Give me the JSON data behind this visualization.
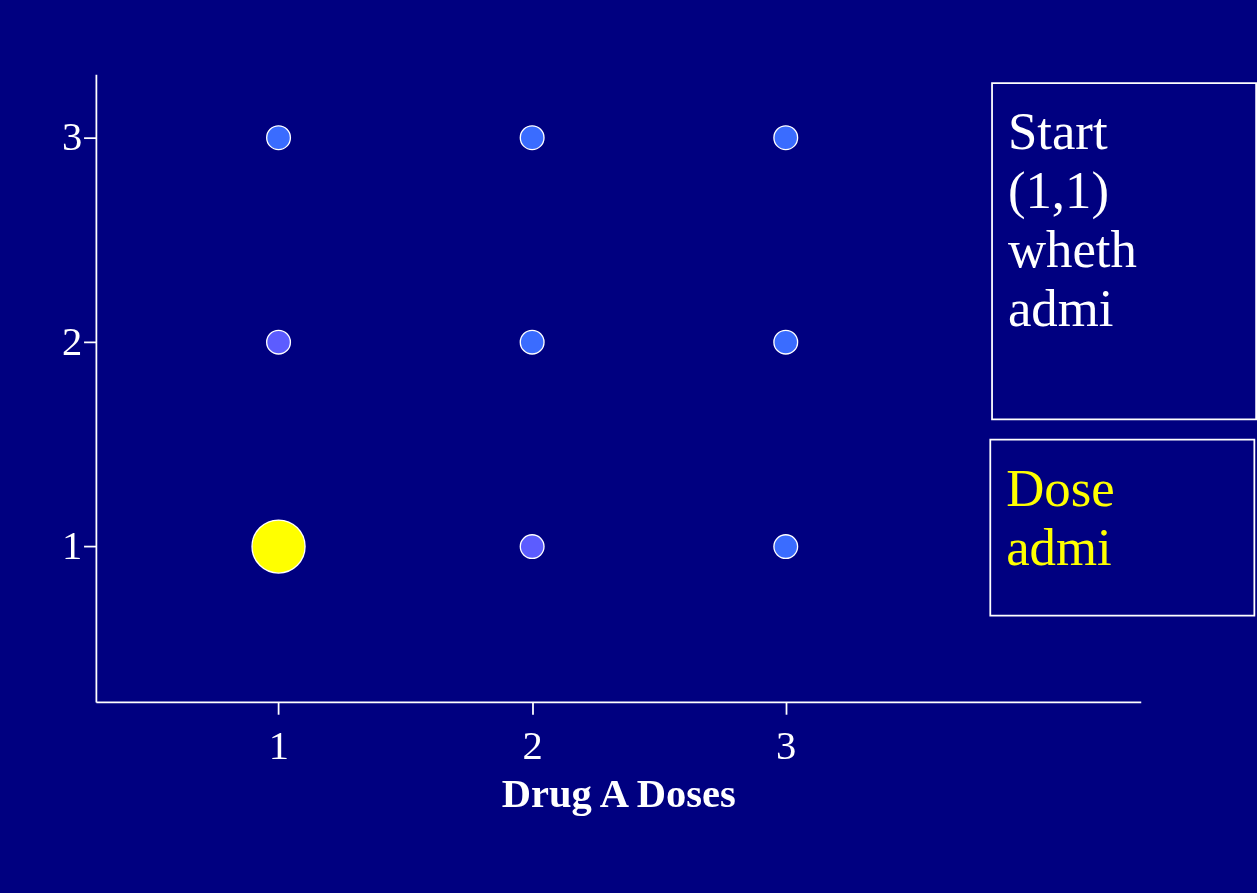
{
  "chart_data": {
    "type": "bubble",
    "xlabel": "Drug A Doses",
    "x": [
      1,
      2,
      3,
      1,
      2,
      3,
      1,
      2,
      3
    ],
    "values": [
      1,
      1,
      1,
      2,
      2,
      2,
      3,
      3,
      3
    ],
    "sizes": [
      1,
      0.2,
      0.2,
      0.2,
      0.2,
      0.2,
      0.2,
      0.2,
      0.2
    ],
    "colors": [
      "#ffff00",
      "#5c5cff",
      "#3a6cff",
      "#5c5cff",
      "#3a6cff",
      "#3a6cff",
      "#3a6cff",
      "#3a6cff",
      "#3a6cff"
    ],
    "xlim": [
      0.28,
      4.4
    ],
    "ylim": [
      0.24,
      3.31
    ],
    "xticks": [
      1,
      2,
      3
    ],
    "yticks": [
      1,
      2,
      3
    ],
    "grid": false,
    "legend": false,
    "annotations": [
      "Start\n(1,1)\nwheth\nadmi",
      "Dose\nadmi"
    ]
  }
}
